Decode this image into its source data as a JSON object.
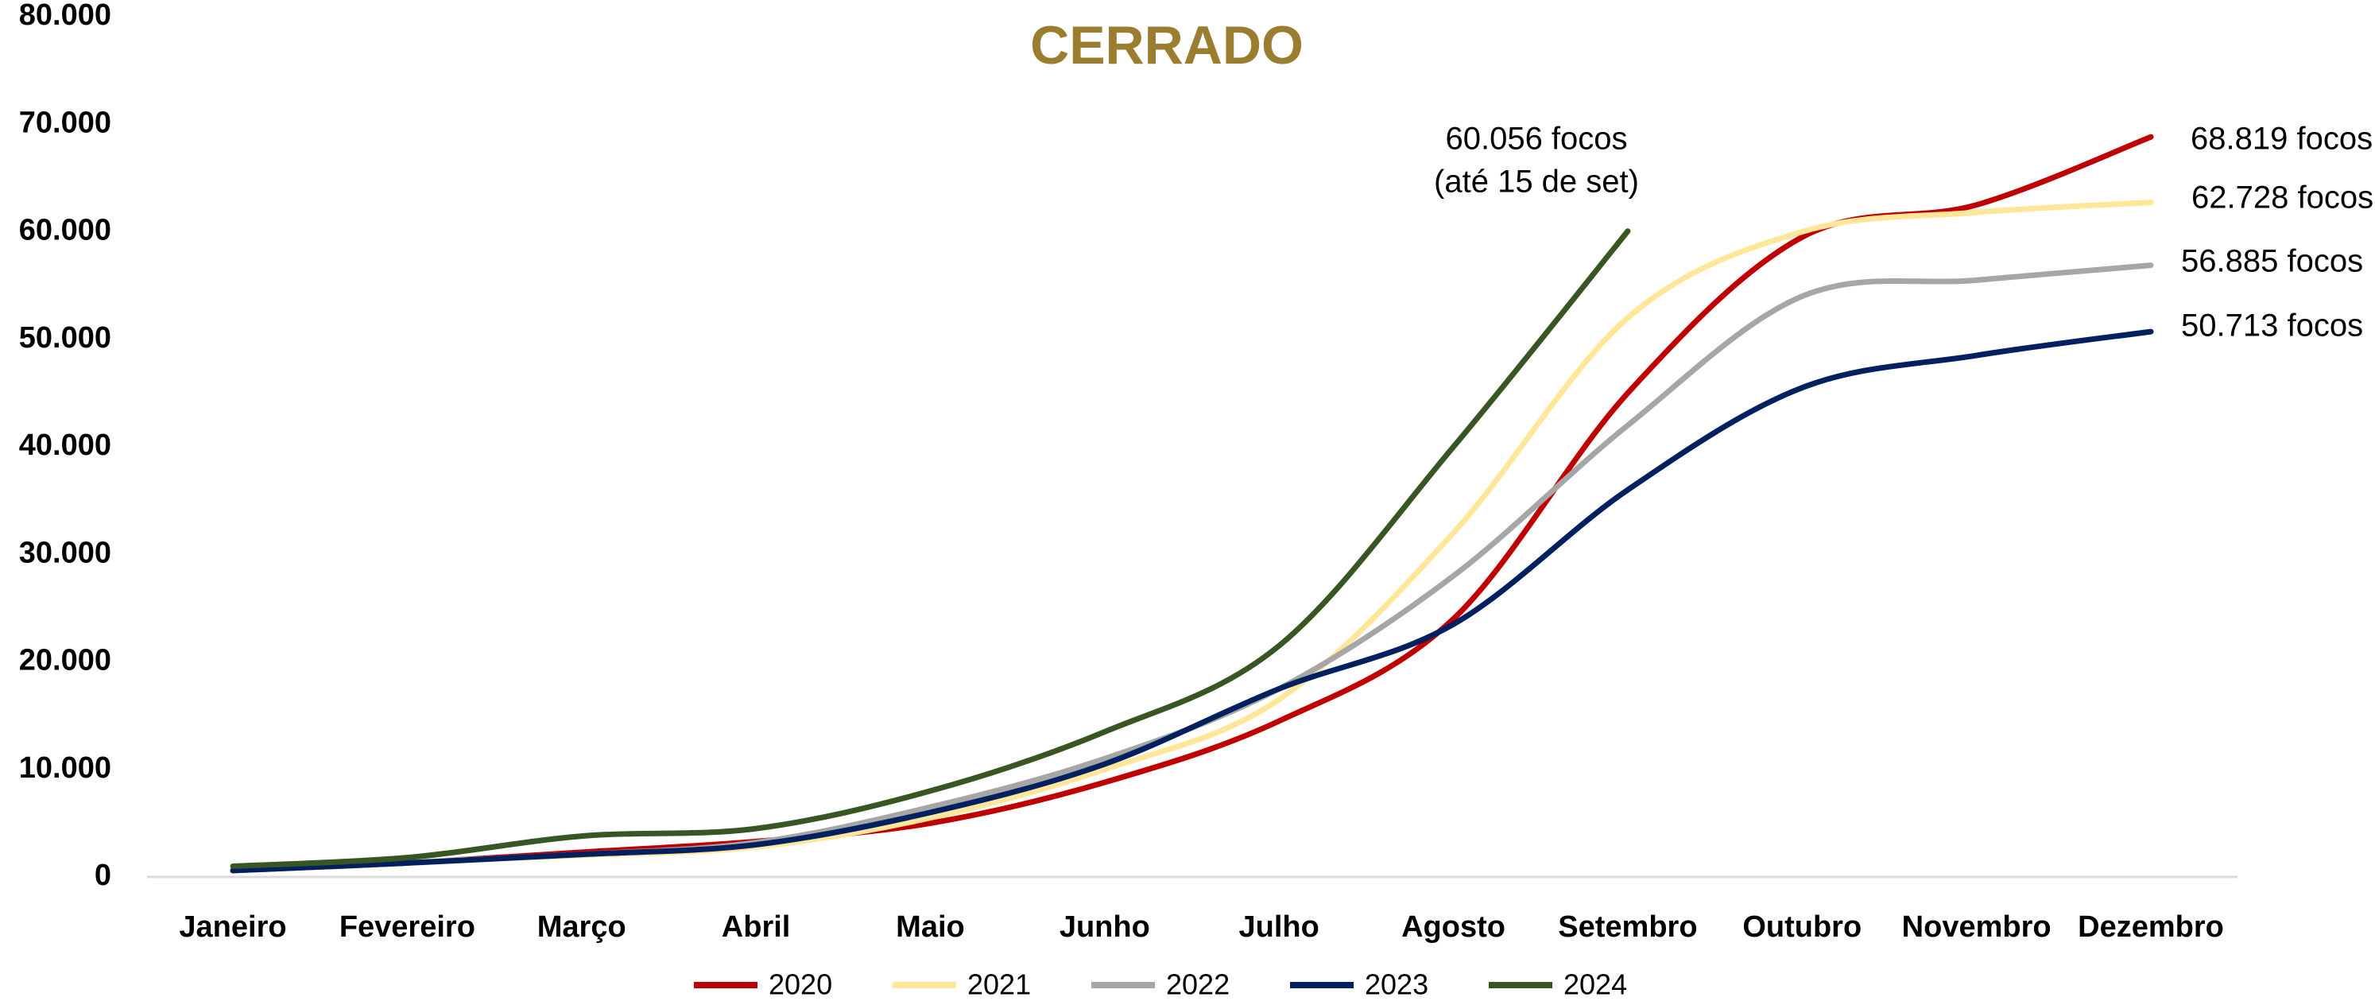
{
  "chart_data": {
    "type": "line",
    "title": "CERRADO",
    "categories": [
      "Janeiro",
      "Fevereiro",
      "Março",
      "Abril",
      "Maio",
      "Junho",
      "Julho",
      "Agosto",
      "Setembro",
      "Outubro",
      "Novembro",
      "Dezembro"
    ],
    "series": [
      {
        "name": "2020",
        "color": "#c00000",
        "values": [
          600,
          1300,
          2300,
          3300,
          5000,
          8800,
          14500,
          24000,
          45000,
          59500,
          62500,
          68819
        ]
      },
      {
        "name": "2021",
        "color": "#ffe699",
        "values": [
          700,
          1400,
          2000,
          2800,
          5500,
          10000,
          16500,
          32000,
          52000,
          60000,
          61800,
          62728
        ]
      },
      {
        "name": "2022",
        "color": "#a6a6a6",
        "values": [
          600,
          1300,
          2100,
          3200,
          6500,
          11000,
          17500,
          28000,
          42000,
          54000,
          55500,
          56885
        ]
      },
      {
        "name": "2023",
        "color": "#002060",
        "values": [
          600,
          1300,
          2100,
          3000,
          6000,
          10500,
          17500,
          23500,
          36000,
          45500,
          48500,
          50713
        ]
      },
      {
        "name": "2024",
        "color": "#375623",
        "values": [
          1000,
          1800,
          3800,
          4500,
          8000,
          13500,
          21500,
          40000,
          60056,
          null,
          null,
          null
        ]
      }
    ],
    "ylim": [
      0,
      80000
    ],
    "yticks": [
      0,
      {
        "value": 10000,
        "label": "10.000"
      },
      {
        "value": 20000,
        "label": "20.000"
      },
      {
        "value": 30000,
        "label": "30.000"
      },
      {
        "value": 40000,
        "label": "40.000"
      },
      {
        "value": 50000,
        "label": "50.000"
      },
      {
        "value": 60000,
        "label": "60.000"
      },
      {
        "value": 70000,
        "label": "70.000"
      },
      {
        "value": 80000,
        "label": "80.000"
      }
    ],
    "annotations": [
      "60.056 focos",
      "(até 15 de set)",
      "68.819 focos",
      "62.728 focos",
      "56.885 focos",
      "50.713 focos"
    ]
  }
}
